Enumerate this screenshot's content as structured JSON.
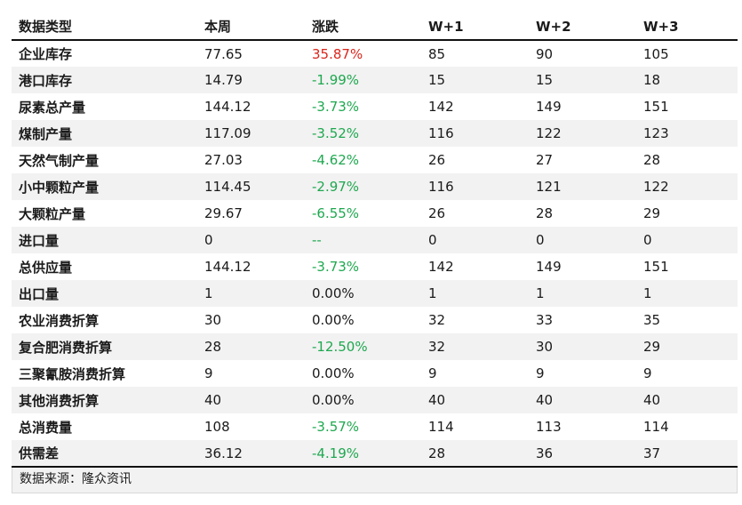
{
  "table": {
    "headers": [
      "数据类型",
      "本周",
      "涨跌",
      "W+1",
      "W+2",
      "W+3"
    ],
    "rows": [
      {
        "name": "企业库存",
        "week": "77.65",
        "change": "35.87%",
        "dir": "up",
        "w1": "85",
        "w2": "90",
        "w3": "105"
      },
      {
        "name": "港口库存",
        "week": "14.79",
        "change": "-1.99%",
        "dir": "down",
        "w1": "15",
        "w2": "15",
        "w3": "18"
      },
      {
        "name": "尿素总产量",
        "week": "144.12",
        "change": "-3.73%",
        "dir": "down",
        "w1": "142",
        "w2": "149",
        "w3": "151"
      },
      {
        "name": "煤制产量",
        "week": "117.09",
        "change": "-3.52%",
        "dir": "down",
        "w1": "116",
        "w2": "122",
        "w3": "123"
      },
      {
        "name": "天然气制产量",
        "week": "27.03",
        "change": "-4.62%",
        "dir": "down",
        "w1": "26",
        "w2": "27",
        "w3": "28"
      },
      {
        "name": "小中颗粒产量",
        "week": "114.45",
        "change": "-2.97%",
        "dir": "down",
        "w1": "116",
        "w2": "121",
        "w3": "122"
      },
      {
        "name": "大颗粒产量",
        "week": "29.67",
        "change": "-6.55%",
        "dir": "down",
        "w1": "26",
        "w2": "28",
        "w3": "29"
      },
      {
        "name": "进口量",
        "week": "0",
        "change": "--",
        "dir": "down",
        "w1": "0",
        "w2": "0",
        "w3": "0"
      },
      {
        "name": "总供应量",
        "week": "144.12",
        "change": "-3.73%",
        "dir": "down",
        "w1": "142",
        "w2": "149",
        "w3": "151"
      },
      {
        "name": "出口量",
        "week": "1",
        "change": "0.00%",
        "dir": "flat",
        "w1": "1",
        "w2": "1",
        "w3": "1"
      },
      {
        "name": "农业消费折算",
        "week": "30",
        "change": "0.00%",
        "dir": "flat",
        "w1": "32",
        "w2": "33",
        "w3": "35"
      },
      {
        "name": "复合肥消费折算",
        "week": "28",
        "change": "-12.50%",
        "dir": "down",
        "w1": "32",
        "w2": "30",
        "w3": "29"
      },
      {
        "name": "三聚氰胺消费折算",
        "week": "9",
        "change": "0.00%",
        "dir": "flat",
        "w1": "9",
        "w2": "9",
        "w3": "9"
      },
      {
        "name": "其他消费折算",
        "week": "40",
        "change": "0.00%",
        "dir": "flat",
        "w1": "40",
        "w2": "40",
        "w3": "40"
      },
      {
        "name": "总消费量",
        "week": "108",
        "change": "-3.57%",
        "dir": "down",
        "w1": "114",
        "w2": "113",
        "w3": "114"
      },
      {
        "name": "供需差",
        "week": "36.12",
        "change": "-4.19%",
        "dir": "down",
        "w1": "28",
        "w2": "36",
        "w3": "37"
      }
    ]
  },
  "source": "数据来源：隆众资讯",
  "colors": {
    "up": "#d9261c",
    "down": "#1ea84f",
    "stripe": "#f2f2f2"
  }
}
